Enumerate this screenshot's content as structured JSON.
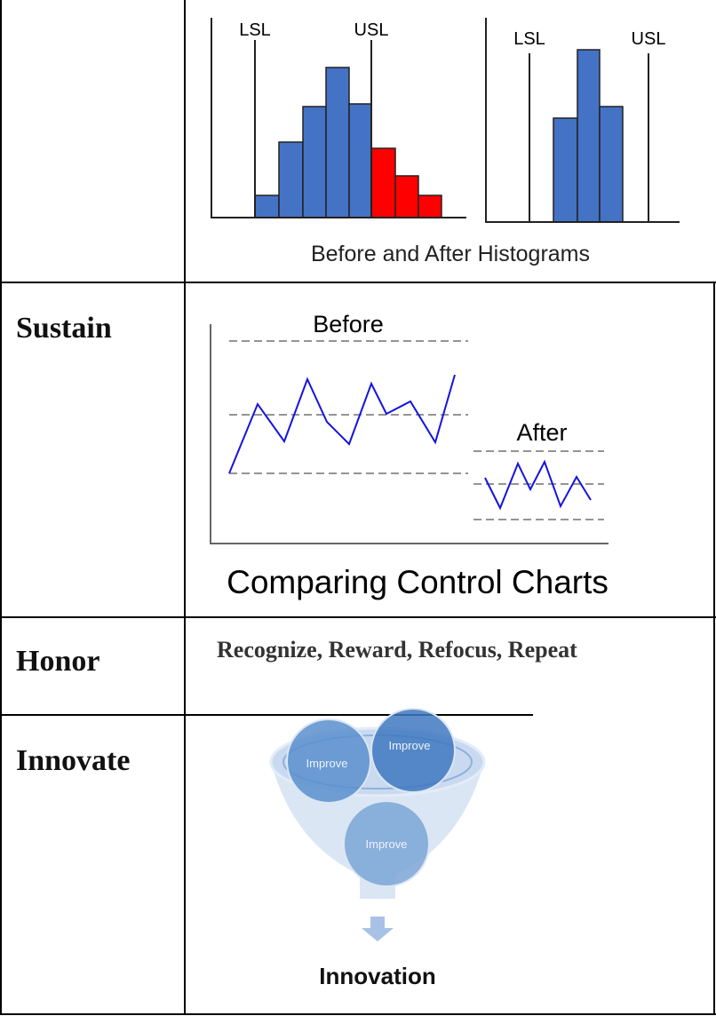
{
  "table": {
    "rows": [
      {
        "figure": {
          "labels": [
            "LSL",
            "USL",
            "LSL",
            "USL"
          ],
          "caption": "Before and After Histograms"
        }
      },
      {
        "label": "Sustain",
        "figure": {
          "before": "Before",
          "after": "After",
          "caption": "Comparing Control Charts"
        }
      },
      {
        "label": "Honor",
        "text": "Recognize, Reward, Refocus, Repeat"
      },
      {
        "label": "Innovate",
        "figure": {
          "circles": [
            "Improve",
            "Improve",
            "Improve"
          ],
          "result": "Innovation"
        }
      }
    ]
  }
}
